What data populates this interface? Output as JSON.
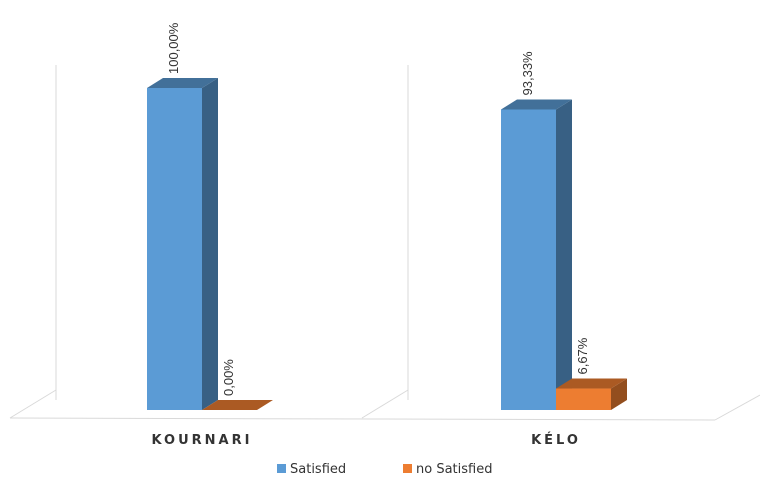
{
  "chart_data": {
    "type": "bar",
    "categories": [
      "KOURNARI",
      "KÉLO"
    ],
    "series": [
      {
        "name": "Satisfied",
        "values": [
          100.0,
          93.33
        ],
        "labels": [
          "100,00%",
          "93,33%"
        ],
        "color": "#5b9bd5"
      },
      {
        "name": "no Satisfied",
        "values": [
          0.0,
          6.67
        ],
        "labels": [
          "0,00%",
          "6,67%"
        ],
        "color": "#ed7d31"
      }
    ],
    "ylim": [
      0,
      100
    ],
    "legend_position": "bottom",
    "grid": false,
    "style": "3d-column"
  }
}
